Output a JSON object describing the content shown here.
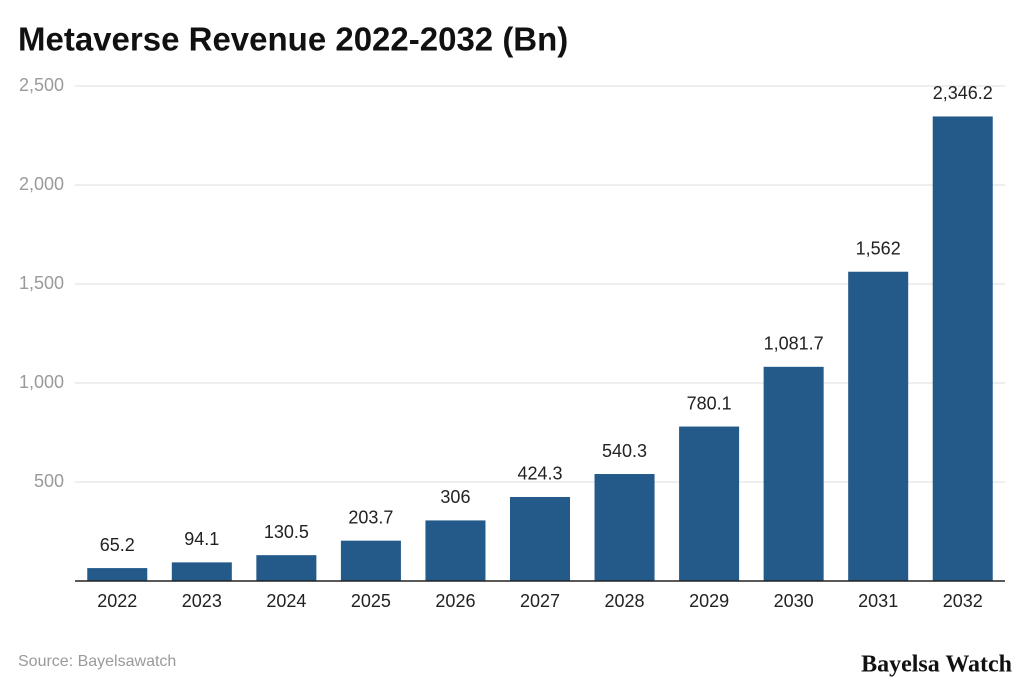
{
  "chart_data": {
    "type": "bar",
    "title": "Metaverse Revenue 2022-2032 (Bn)",
    "categories": [
      "2022",
      "2023",
      "2024",
      "2025",
      "2026",
      "2027",
      "2028",
      "2029",
      "2030",
      "2031",
      "2032"
    ],
    "values": [
      65.2,
      94.1,
      130.5,
      203.7,
      306,
      424.3,
      540.3,
      780.1,
      1081.7,
      1562,
      2346.2
    ],
    "value_labels": [
      "65.2",
      "94.1",
      "130.5",
      "203.7",
      "306",
      "424.3",
      "540.3",
      "780.1",
      "1,081.7",
      "1,562",
      "2,346.2"
    ],
    "color": "#245a8a",
    "ylim": [
      0,
      2500
    ],
    "yticks": [
      500,
      {
        "value": 1000,
        "label": "1,000"
      },
      {
        "value": 1500,
        "label": "1,500"
      },
      {
        "value": 2000,
        "label": "2,000"
      },
      {
        "value": 2500,
        "label": "2,500"
      }
    ],
    "grid": true,
    "source": "Source: Bayelsawatch",
    "watermark": "Bayelsa Watch"
  }
}
